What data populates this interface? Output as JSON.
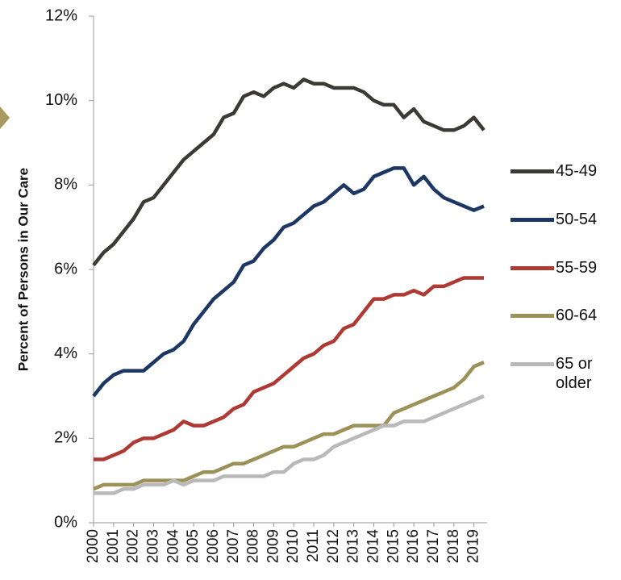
{
  "chart_data": {
    "type": "line",
    "ylabel": "Percent of Persons in Our Care",
    "categories": [
      "2000",
      null,
      "2001",
      null,
      "2002",
      null,
      "2003",
      null,
      "2004",
      null,
      "2005",
      null,
      "2006",
      null,
      "2007",
      null,
      "2008",
      null,
      "2009",
      null,
      "2010",
      null,
      "2011",
      null,
      "2012",
      null,
      "2013",
      null,
      "2014",
      null,
      "2015",
      null,
      "2016",
      null,
      "2017",
      null,
      "2018",
      null,
      "2019",
      null
    ],
    "series": [
      {
        "name": "45-49",
        "color": "#3b3a34",
        "values": [
          6.1,
          6.4,
          6.6,
          6.9,
          7.2,
          7.6,
          7.7,
          8.0,
          8.3,
          8.6,
          8.8,
          9.0,
          9.2,
          9.6,
          9.7,
          10.1,
          10.2,
          10.1,
          10.3,
          10.4,
          10.3,
          10.5,
          10.4,
          10.4,
          10.3,
          10.3,
          10.3,
          10.2,
          10.0,
          9.9,
          9.9,
          9.6,
          9.8,
          9.5,
          9.4,
          9.3,
          9.3,
          9.4,
          9.6,
          9.3
        ]
      },
      {
        "name": "50-54",
        "color": "#1c3763",
        "values": [
          3.0,
          3.3,
          3.5,
          3.6,
          3.6,
          3.6,
          3.8,
          4.0,
          4.1,
          4.3,
          4.7,
          5.0,
          5.3,
          5.5,
          5.7,
          6.1,
          6.2,
          6.5,
          6.7,
          7.0,
          7.1,
          7.3,
          7.5,
          7.6,
          7.8,
          8.0,
          7.8,
          7.9,
          8.2,
          8.3,
          8.4,
          8.4,
          8.0,
          8.2,
          7.9,
          7.7,
          7.6,
          7.5,
          7.4,
          7.5
        ]
      },
      {
        "name": "55-59",
        "color": "#ae3a33",
        "values": [
          1.5,
          1.5,
          1.6,
          1.7,
          1.9,
          2.0,
          2.0,
          2.1,
          2.2,
          2.4,
          2.3,
          2.3,
          2.4,
          2.5,
          2.7,
          2.8,
          3.1,
          3.2,
          3.3,
          3.5,
          3.7,
          3.9,
          4.0,
          4.2,
          4.3,
          4.6,
          4.7,
          5.0,
          5.3,
          5.3,
          5.4,
          5.4,
          5.5,
          5.4,
          5.6,
          5.6,
          5.7,
          5.8,
          5.8,
          5.8
        ]
      },
      {
        "name": "60-64",
        "color": "#9c9158",
        "values": [
          0.8,
          0.9,
          0.9,
          0.9,
          0.9,
          1.0,
          1.0,
          1.0,
          1.0,
          1.0,
          1.1,
          1.2,
          1.2,
          1.3,
          1.4,
          1.4,
          1.5,
          1.6,
          1.7,
          1.8,
          1.8,
          1.9,
          2.0,
          2.1,
          2.1,
          2.2,
          2.3,
          2.3,
          2.3,
          2.3,
          2.6,
          2.7,
          2.8,
          2.9,
          3.0,
          3.1,
          3.2,
          3.4,
          3.7,
          3.8
        ]
      },
      {
        "name": "65 or older",
        "color": "#b9b9b9",
        "values": [
          0.7,
          0.7,
          0.7,
          0.8,
          0.8,
          0.9,
          0.9,
          0.9,
          1.0,
          0.9,
          1.0,
          1.0,
          1.0,
          1.1,
          1.1,
          1.1,
          1.1,
          1.1,
          1.2,
          1.2,
          1.4,
          1.5,
          1.5,
          1.6,
          1.8,
          1.9,
          2.0,
          2.1,
          2.2,
          2.3,
          2.3,
          2.4,
          2.4,
          2.4,
          2.5,
          2.6,
          2.7,
          2.8,
          2.9,
          3.0
        ]
      }
    ],
    "ylim": [
      0,
      12
    ],
    "yticks": [
      {
        "value": 0,
        "label": "0%"
      },
      {
        "value": 2,
        "label": "2%"
      },
      {
        "value": 4,
        "label": "4%"
      },
      {
        "value": 6,
        "label": "6%"
      },
      {
        "value": 8,
        "label": "8%"
      },
      {
        "value": 10,
        "label": "10%"
      },
      {
        "value": 12,
        "label": "12%"
      }
    ],
    "grid": false,
    "legend": "right"
  }
}
